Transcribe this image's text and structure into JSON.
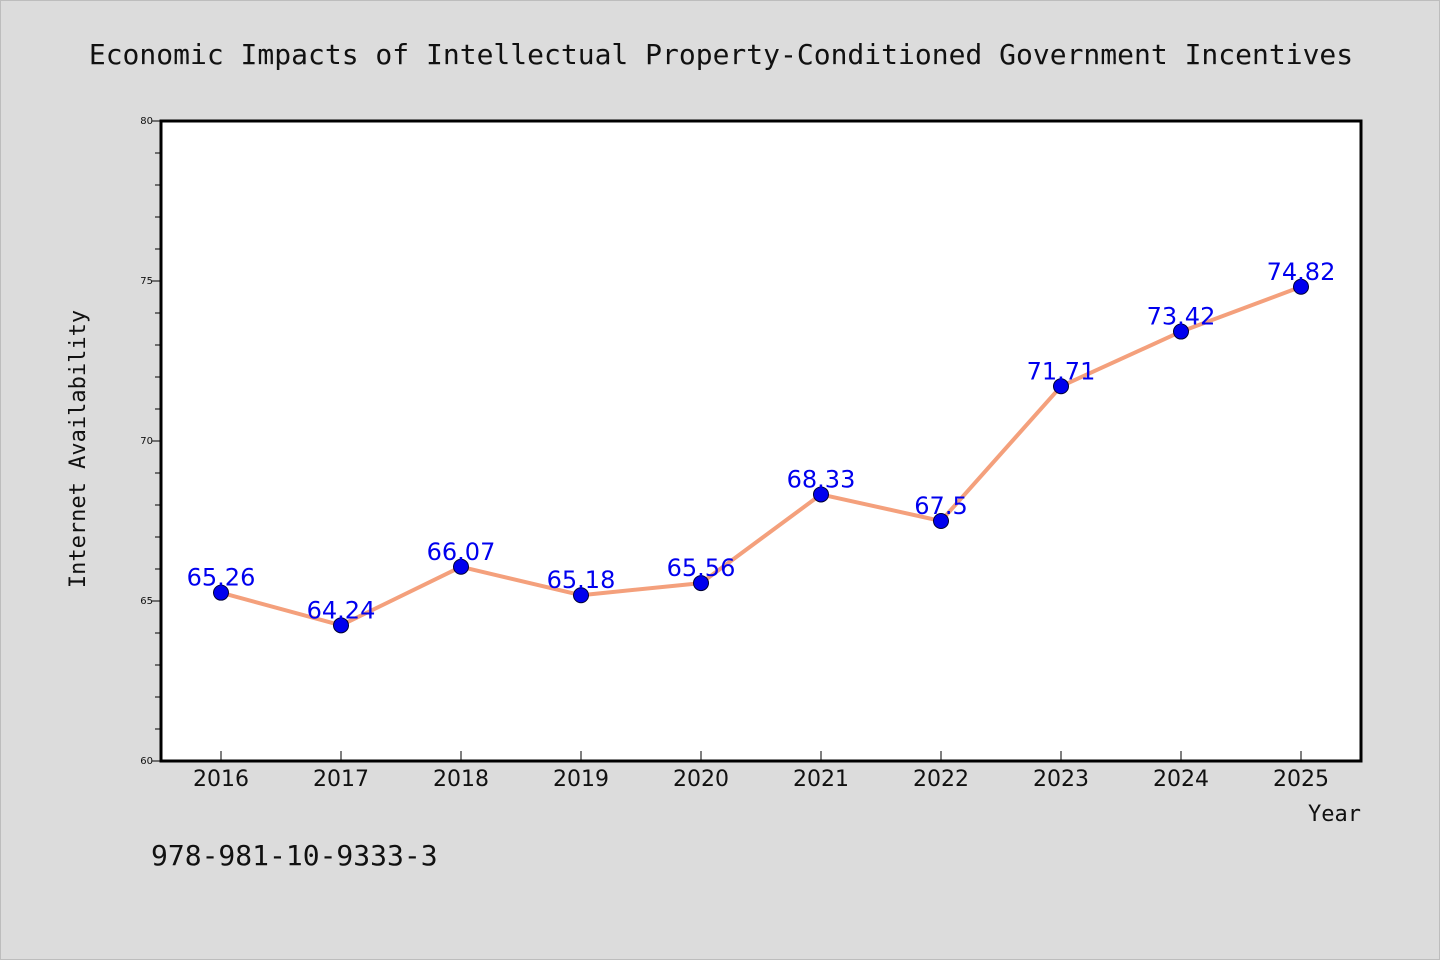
{
  "chart_data": {
    "type": "line",
    "title": "Economic Impacts of Intellectual Property-Conditioned Government Incentives",
    "xlabel": "Year",
    "ylabel": "Internet Availability",
    "categories": [
      "2016",
      "2017",
      "2018",
      "2019",
      "2020",
      "2021",
      "2022",
      "2023",
      "2024",
      "2025"
    ],
    "series": [
      {
        "values": [
          65.26,
          64.24,
          66.07,
          65.18,
          65.56,
          68.33,
          67.5,
          71.71,
          73.42,
          74.82
        ],
        "labels": [
          "65.26",
          "64.24",
          "66.07",
          "65.18",
          "65.56",
          "68.33",
          "67.5",
          "71.71",
          "73.42",
          "74.82"
        ]
      }
    ],
    "ylim": [
      60,
      80
    ],
    "yticks": [
      "60",
      "65",
      "70",
      "75",
      "80"
    ],
    "grid": false,
    "legend": "none"
  },
  "footer": {
    "code": "978-981-10-9333-3"
  },
  "colors": {
    "background": "#dcdcdc",
    "plot_background": "#ffffff",
    "line": "#f4a07c",
    "marker": "#0000ee",
    "label": "#0000ee",
    "axis": "#000000"
  }
}
